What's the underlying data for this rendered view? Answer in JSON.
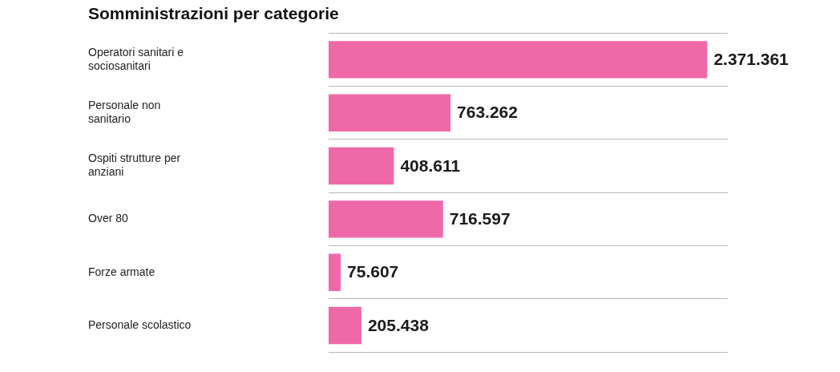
{
  "chart_data": {
    "type": "bar",
    "title": "Somministrazioni per categorie",
    "orientation": "horizontal",
    "categories": [
      "Operatori sanitari e sociosanitari",
      "Personale non sanitario",
      "Ospiti strutture per anziani",
      "Over 80",
      "Forze armate",
      "Personale scolastico"
    ],
    "values": [
      2371361,
      763262,
      408611,
      716597,
      75607,
      205438
    ],
    "value_labels": [
      "2.371.361",
      "763.262",
      "408.611",
      "716.597",
      "75.607",
      "205.438"
    ],
    "color": "#ef69a8",
    "data_labels": true,
    "tick_labels": "y",
    "grid": true
  }
}
